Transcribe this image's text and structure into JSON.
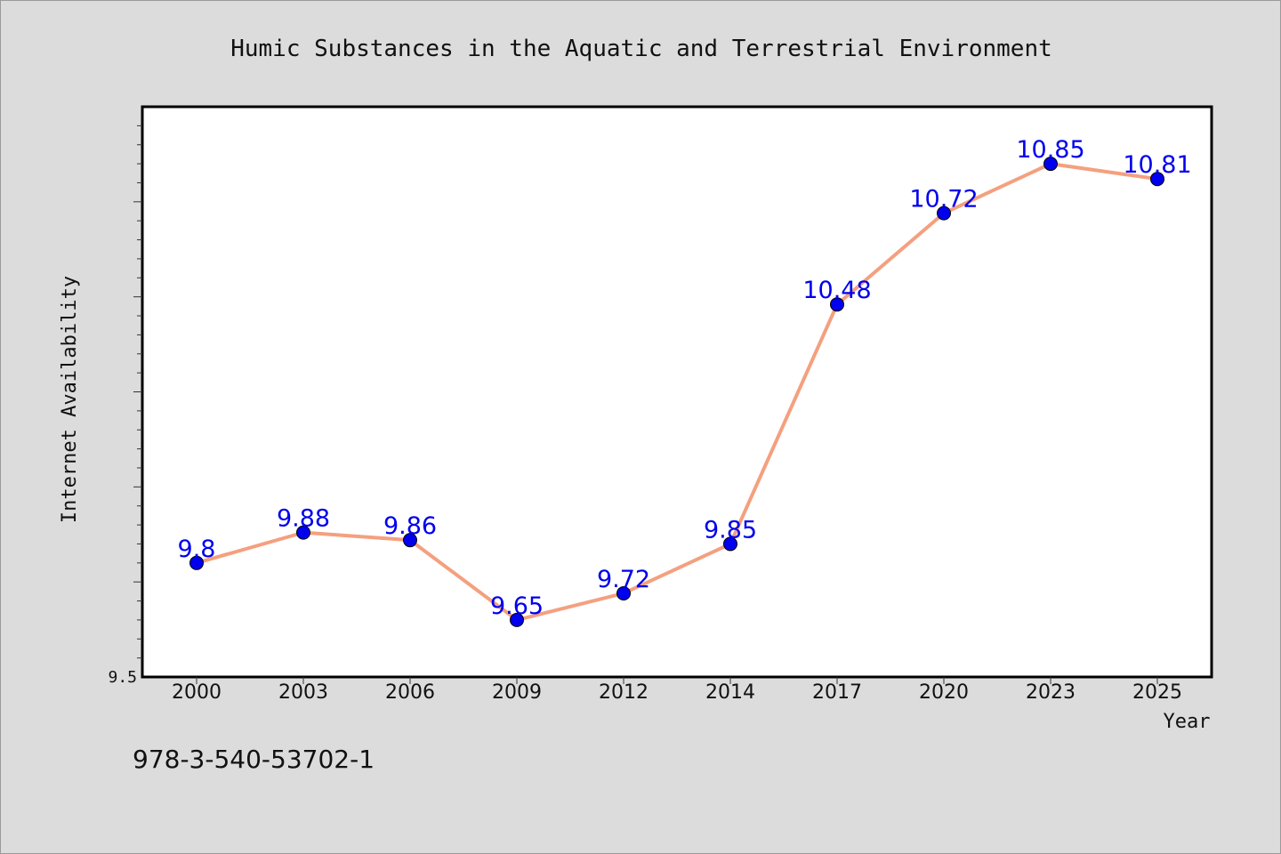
{
  "chart_data": {
    "type": "line",
    "title": "Humic Substances in the Aquatic and Terrestrial Environment",
    "xlabel": "Year",
    "ylabel": "Internet Availability",
    "categories": [
      "2000",
      "2003",
      "2006",
      "2009",
      "2012",
      "2014",
      "2017",
      "2020",
      "2023",
      "2025"
    ],
    "series": [
      {
        "values": [
          9.8,
          9.88,
          9.86,
          9.65,
          9.72,
          9.85,
          10.48,
          10.72,
          10.85,
          10.81
        ],
        "labels": [
          "9.8",
          "9.88",
          "9.86",
          "9.65",
          "9.72",
          "9.85",
          "10.48",
          "10.72",
          "10.85",
          "10.81"
        ]
      }
    ],
    "ylim": [
      9.5,
      11.0
    ],
    "y_tick_labels": [
      "9.5"
    ],
    "grid": false,
    "legend": "none",
    "colors": {
      "line": "#f4a07f",
      "marker": "#0000ee",
      "data_label": "#0000ee",
      "plot_background": "#ffffff",
      "page_background": "#dcdcdc"
    }
  },
  "footer": {
    "isbn": "978-3-540-53702-1"
  }
}
